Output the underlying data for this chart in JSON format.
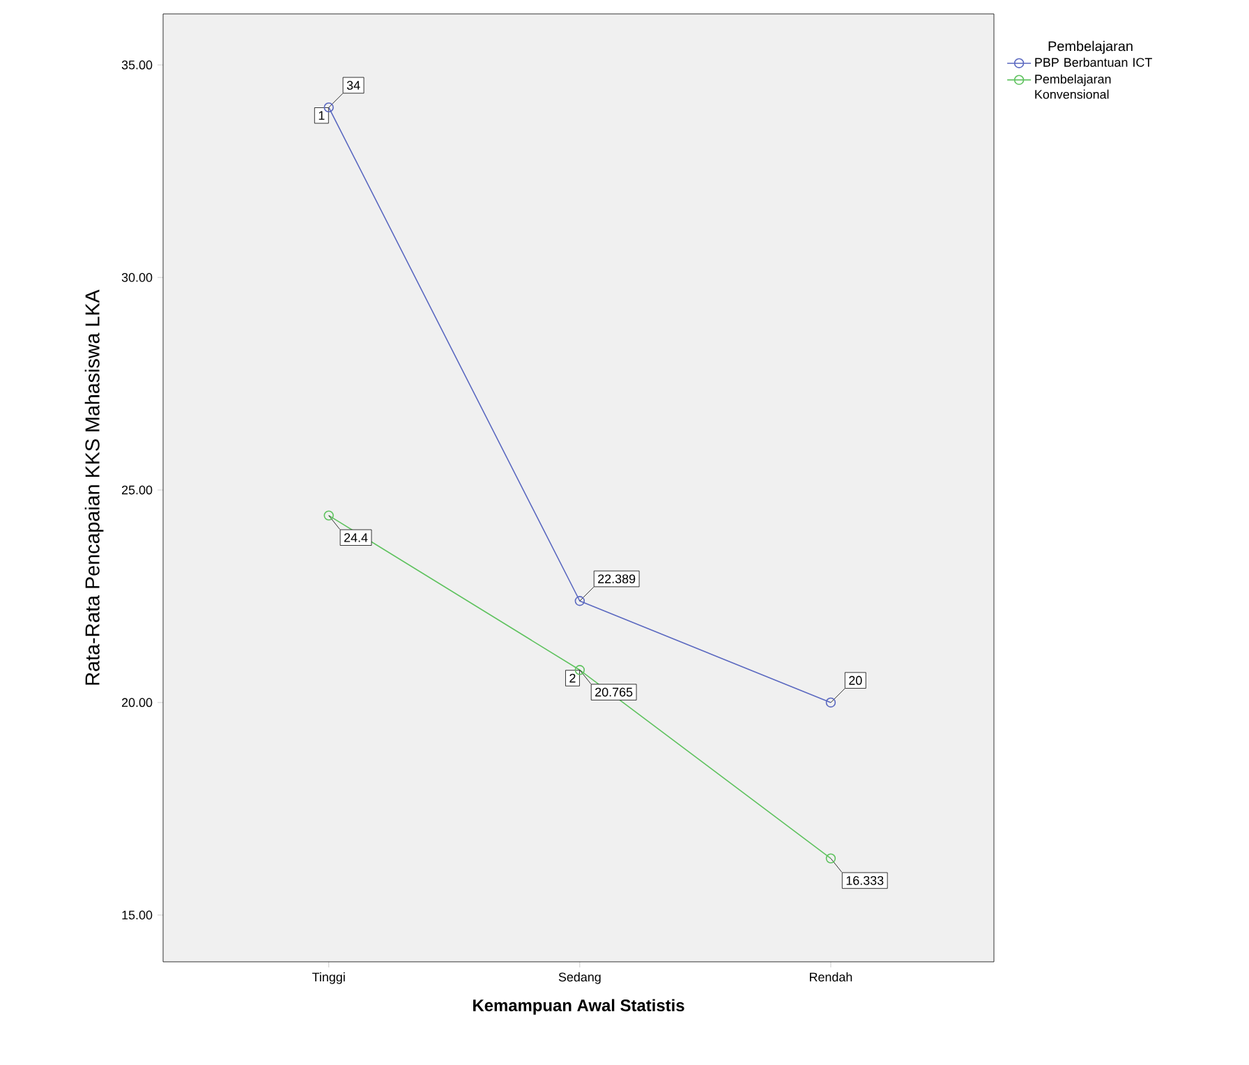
{
  "chart_data": {
    "type": "line",
    "xlabel": "Kemampuan Awal Statistis",
    "ylabel": "Rata-Rata Pencapaian KKS Mahasiswa LKA",
    "legend_title": "Pembelajaran",
    "categories": [
      "Tinggi",
      "Sedang",
      "Rendah"
    ],
    "series": [
      {
        "name": "PBP Berbantuan ICT",
        "color": "#5a68c0",
        "values": [
          34,
          22.389,
          20
        ]
      },
      {
        "name": "Pembelajaran Konvensional",
        "color": "#5ec25e",
        "values": [
          24.4,
          20.765,
          16.333
        ]
      }
    ],
    "ylim": [
      13.9,
      36.2
    ],
    "yticks": [
      {
        "value": 15,
        "label": "15.00"
      },
      {
        "value": 20,
        "label": "20.00"
      },
      {
        "value": 25,
        "label": "25.00"
      },
      {
        "value": 30,
        "label": "30.00"
      },
      {
        "value": 35,
        "label": "35.00"
      }
    ],
    "data_labels": true,
    "marker": "circle",
    "line_style": "solid",
    "grid": false,
    "legend": "top right",
    "annotations": [
      {
        "text": "1",
        "x": "Tinggi",
        "y": 34
      },
      {
        "text": "2",
        "x": "Sedang",
        "y": 20.765
      }
    ]
  }
}
